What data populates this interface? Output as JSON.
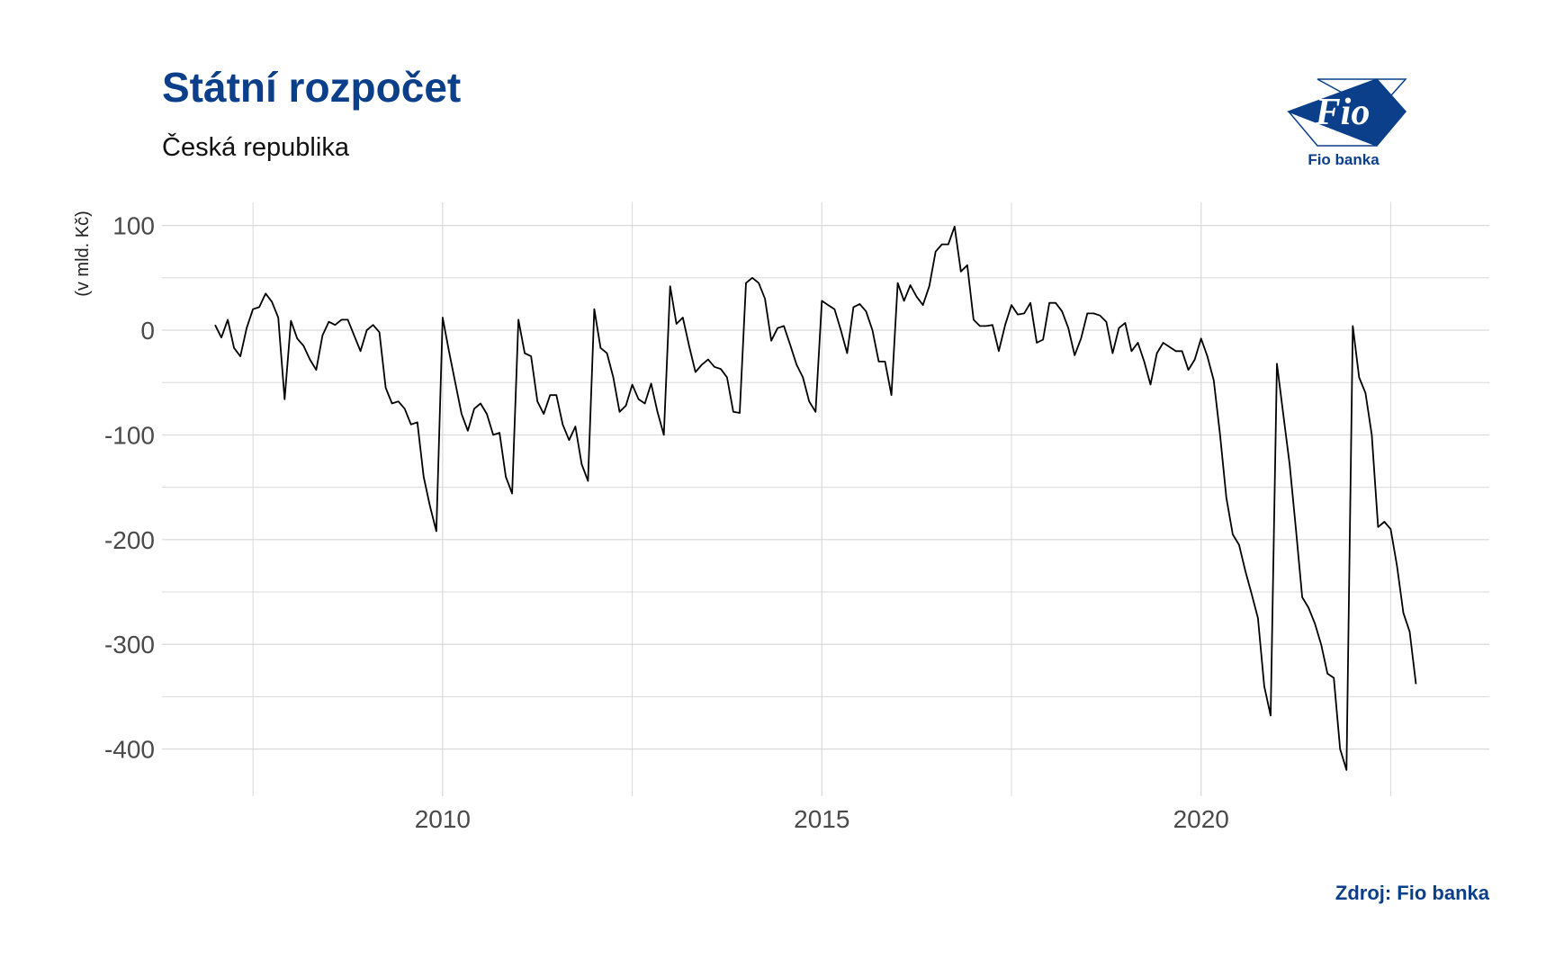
{
  "header": {
    "title": "Státní rozpočet",
    "subtitle": "Česká republika"
  },
  "logo": {
    "mark_text": "Fio",
    "name": "Fio banka",
    "icon": "fio-banka-logo-icon"
  },
  "source": "Zdroj: Fio banka",
  "colors": {
    "brand": "#0b3f8a",
    "line": "#000000",
    "grid": "#d9d9d9"
  },
  "chart_data": {
    "type": "line",
    "title": "Státní rozpočet",
    "subtitle": "Česká republika",
    "xlabel": "",
    "ylabel": "(v mld. Kč)",
    "xlim": [
      2006.3,
      2023.8
    ],
    "ylim": [
      -445,
      122
    ],
    "x_ticks": [
      2010,
      2015,
      2020
    ],
    "y_ticks": [
      100,
      0,
      -100,
      -200,
      -300,
      -400
    ],
    "y_tick_labels": [
      "100",
      "0",
      "-100",
      "-200",
      "-300",
      "-400"
    ],
    "grid": true,
    "legend": "none",
    "series": [
      {
        "x": [
          2007.0,
          2007.083,
          2007.167,
          2007.25,
          2007.333,
          2007.417,
          2007.5,
          2007.583,
          2007.667,
          2007.75,
          2007.833,
          2007.917,
          2008.0,
          2008.083,
          2008.167,
          2008.25,
          2008.333,
          2008.417,
          2008.5,
          2008.583,
          2008.667,
          2008.75,
          2008.833,
          2008.917,
          2009.0,
          2009.083,
          2009.167,
          2009.25,
          2009.333,
          2009.417,
          2009.5,
          2009.583,
          2009.667,
          2009.75,
          2009.833,
          2009.917,
          2010.0,
          2010.083,
          2010.167,
          2010.25,
          2010.333,
          2010.417,
          2010.5,
          2010.583,
          2010.667,
          2010.75,
          2010.833,
          2010.917,
          2011.0,
          2011.083,
          2011.167,
          2011.25,
          2011.333,
          2011.417,
          2011.5,
          2011.583,
          2011.667,
          2011.75,
          2011.833,
          2011.917,
          2012.0,
          2012.083,
          2012.167,
          2012.25,
          2012.333,
          2012.417,
          2012.5,
          2012.583,
          2012.667,
          2012.75,
          2012.833,
          2012.917,
          2013.0,
          2013.083,
          2013.167,
          2013.25,
          2013.333,
          2013.417,
          2013.5,
          2013.583,
          2013.667,
          2013.75,
          2013.833,
          2013.917,
          2014.0,
          2014.083,
          2014.167,
          2014.25,
          2014.333,
          2014.417,
          2014.5,
          2014.583,
          2014.667,
          2014.75,
          2014.833,
          2014.917,
          2015.0,
          2015.083,
          2015.167,
          2015.25,
          2015.333,
          2015.417,
          2015.5,
          2015.583,
          2015.667,
          2015.75,
          2015.833,
          2015.917,
          2016.0,
          2016.083,
          2016.167,
          2016.25,
          2016.333,
          2016.417,
          2016.5,
          2016.583,
          2016.667,
          2016.75,
          2016.833,
          2016.917,
          2017.0,
          2017.083,
          2017.167,
          2017.25,
          2017.333,
          2017.417,
          2017.5,
          2017.583,
          2017.667,
          2017.75,
          2017.833,
          2017.917,
          2018.0,
          2018.083,
          2018.167,
          2018.25,
          2018.333,
          2018.417,
          2018.5,
          2018.583,
          2018.667,
          2018.75,
          2018.833,
          2018.917,
          2019.0,
          2019.083,
          2019.167,
          2019.25,
          2019.333,
          2019.417,
          2019.5,
          2019.583,
          2019.667,
          2019.75,
          2019.833,
          2019.917,
          2020.0,
          2020.083,
          2020.167,
          2020.25,
          2020.333,
          2020.417,
          2020.5,
          2020.583,
          2020.667,
          2020.75,
          2020.833,
          2020.917,
          2021.0,
          2021.083,
          2021.167,
          2021.25,
          2021.333,
          2021.417,
          2021.5,
          2021.583,
          2021.667,
          2021.75,
          2021.833,
          2021.917,
          2022.0,
          2022.083,
          2022.167,
          2022.25,
          2022.333,
          2022.417,
          2022.5,
          2022.583,
          2022.667,
          2022.75,
          2022.833
        ],
        "y": [
          5,
          -7,
          10,
          -17,
          -25,
          2,
          20,
          22,
          35,
          27,
          12,
          -66,
          9,
          -8,
          -15,
          -28,
          -38,
          -5,
          8,
          5,
          10,
          10,
          -5,
          -20,
          0,
          5,
          -2,
          -55,
          -70,
          -68,
          -75,
          -90,
          -88,
          -140,
          -168,
          -192,
          12,
          -20,
          -50,
          -80,
          -96,
          -75,
          -70,
          -80,
          -100,
          -98,
          -140,
          -156,
          10,
          -22,
          -25,
          -68,
          -80,
          -62,
          -62,
          -90,
          -105,
          -92,
          -128,
          -144,
          20,
          -17,
          -22,
          -45,
          -78,
          -72,
          -52,
          -66,
          -70,
          -51,
          -78,
          -100,
          42,
          6,
          12,
          -15,
          -40,
          -33,
          -28,
          -35,
          -37,
          -45,
          -78,
          -79,
          45,
          50,
          45,
          30,
          -10,
          2,
          4,
          -14,
          -33,
          -45,
          -68,
          -78,
          28,
          24,
          20,
          0,
          -22,
          22,
          25,
          18,
          0,
          -30,
          -30,
          -62,
          45,
          28,
          43,
          32,
          24,
          42,
          75,
          82,
          82,
          99,
          56,
          62,
          10,
          4,
          4,
          5,
          -20,
          5,
          24,
          15,
          16,
          26,
          -12,
          -9,
          26,
          26,
          18,
          2,
          -24,
          -8,
          16,
          16,
          14,
          8,
          -22,
          2,
          7,
          -20,
          -12,
          -30,
          -52,
          -22,
          -12,
          -16,
          -20,
          -20,
          -38,
          -28,
          -8,
          -25,
          -48,
          -100,
          -160,
          -195,
          -205,
          -230,
          -252,
          -275,
          -340,
          -368,
          -32,
          -80,
          -128,
          -190,
          -255,
          -265,
          -280,
          -300,
          -328,
          -332,
          -400,
          -420,
          4,
          -45,
          -60,
          -100,
          -188,
          -183,
          -190,
          -225,
          -270,
          -288,
          -338
        ]
      }
    ]
  }
}
